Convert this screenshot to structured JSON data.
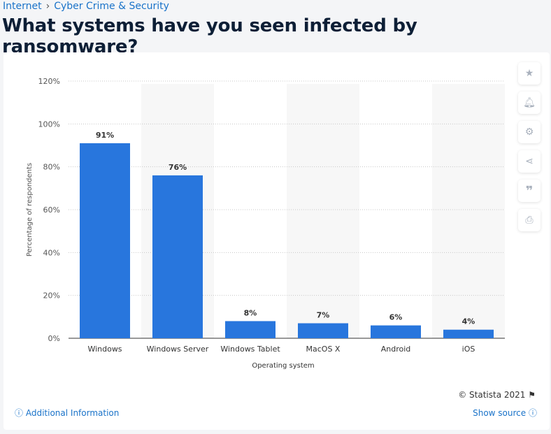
{
  "breadcrumb": [
    "Internet",
    "Cyber Crime & Security"
  ],
  "breadcrumb_sep": "›",
  "title": "What systems have you seen infected by ransomware?",
  "credit": "© Statista 2021",
  "additional_info": "Additional Information",
  "show_source": "Show source",
  "colors": {
    "bar": "#2876dd",
    "link": "#1a73c9"
  },
  "chart_data": {
    "type": "bar",
    "title": "What systems have you seen infected by ransomware?",
    "categories": [
      "Windows",
      "Windows Server",
      "Windows Tablet",
      "MacOS X",
      "Android",
      "iOS"
    ],
    "values": [
      91,
      76,
      8,
      7,
      6,
      4
    ],
    "data_labels": [
      "91%",
      "76%",
      "8%",
      "7%",
      "6%",
      "4%"
    ],
    "xlabel": "Operating system",
    "ylabel": "Percentage of respondents",
    "ylim": [
      0,
      120
    ],
    "yticks": [
      0,
      20,
      40,
      60,
      80,
      100,
      120
    ],
    "ytick_labels": [
      "0%",
      "20%",
      "40%",
      "60%",
      "80%",
      "100%",
      "120%"
    ],
    "grid": true
  }
}
